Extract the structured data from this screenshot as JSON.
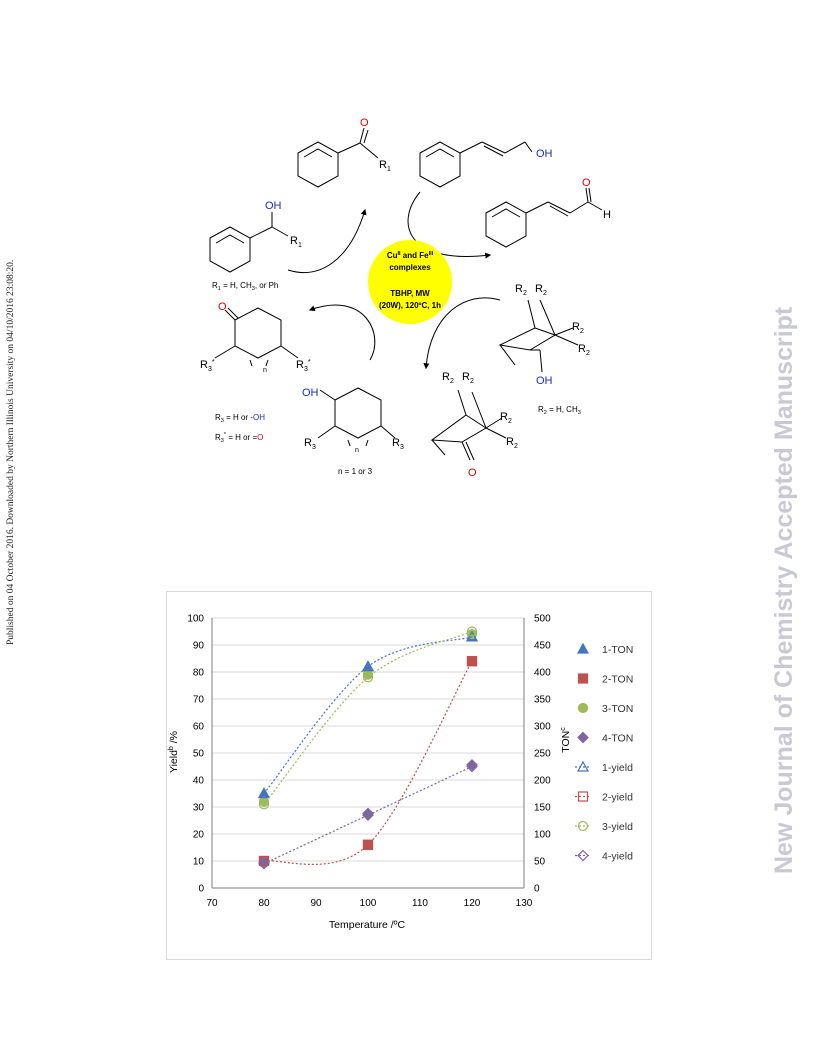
{
  "side_left": "Published on 04 October 2016. Downloaded by Northern Illinois University on 04/10/2016 23:08:20.",
  "side_right": "New Journal of Chemistry Accepted Manuscript",
  "scheme": {
    "catalyst_line1": "Cu",
    "catalyst_sup1": "II",
    "catalyst_and": " and Fe",
    "catalyst_sup2": "III",
    "catalyst_line2": "complexes",
    "catalyst_line3": "TBHP, MW",
    "catalyst_line4": "(20W), 120ºC, 1h",
    "oh": "OH",
    "o": "O",
    "h": "H",
    "r1": "R",
    "r1_sub": "1",
    "r2": "R",
    "r2_sub": "2",
    "r3": "R",
    "r3_sub": "3",
    "r3s_sub": "3",
    "r3s_sup": "*",
    "n": "n",
    "r1_note_prefix": "R",
    "r1_note_sub": "1",
    "r1_note_rest": " = H, CH",
    "r1_note_sub2": "3",
    "r1_note_end": ", or Ph",
    "r2_note_prefix": "R",
    "r2_note_sub": "2",
    "r2_note_rest": " = H, CH",
    "r2_note_sub2": "3",
    "r3_note_prefix": "R",
    "r3_note_sub": "3",
    "r3_note_rest": " = H or -",
    "r3_note_oh": "OH",
    "r3s_note_prefix": "R",
    "r3s_note_sub": "3",
    "r3s_note_sup": "*",
    "r3s_note_rest": " = H or =",
    "r3s_note_o": "O",
    "n_note": "n = 1 or 3"
  },
  "colors": {
    "catalyst_fill": "#ffff00",
    "heteroatom_o": "#e00000",
    "heteroatom_oh": "#1a2dbb",
    "s1": "#4472c4",
    "s2": "#c0504d",
    "s3": "#9bbb59",
    "s4": "#8064a2",
    "watermark": "#c9c9d6"
  },
  "chart_data": {
    "type": "scatter",
    "xlabel": "Temperature /ºC",
    "ylabel": "Yield",
    "ylabel_sup": "b",
    "ylabel_unit": " /%",
    "y2label": "TON",
    "y2label_sup": "c",
    "xlim": [
      70,
      130
    ],
    "ylim": [
      0,
      100
    ],
    "y2lim": [
      0,
      500
    ],
    "xticks": [
      "70",
      "80",
      "90",
      "100",
      "110",
      "120",
      "130"
    ],
    "yticks": [
      "0",
      "10",
      "20",
      "30",
      "40",
      "50",
      "60",
      "70",
      "80",
      "90",
      "100"
    ],
    "y2ticks": [
      "0",
      "50",
      "100",
      "150",
      "200",
      "250",
      "300",
      "350",
      "400",
      "450",
      "500"
    ],
    "x": [
      80,
      100,
      120
    ],
    "grid": true,
    "legend_position": "right",
    "series": [
      {
        "name": "1-TON",
        "axis": "right",
        "marker": "triangle",
        "values": [
          175,
          410,
          465
        ]
      },
      {
        "name": "2-TON",
        "axis": "right",
        "marker": "square",
        "values": [
          50,
          80,
          420
        ]
      },
      {
        "name": "3-TON",
        "axis": "right",
        "marker": "circle",
        "values": [
          160,
          395,
          470
        ]
      },
      {
        "name": "4-TON",
        "axis": "right",
        "marker": "diamond",
        "values": [
          48,
          138,
          228
        ]
      },
      {
        "name": "1-yield",
        "axis": "left",
        "marker": "triangle-open",
        "values": [
          35,
          82,
          93
        ]
      },
      {
        "name": "2-yield",
        "axis": "left",
        "marker": "square-open",
        "values": [
          10,
          16,
          84
        ]
      },
      {
        "name": "3-yield",
        "axis": "left",
        "marker": "circle-open",
        "values": [
          31,
          78,
          95
        ]
      },
      {
        "name": "4-yield",
        "axis": "left",
        "marker": "diamond-open",
        "values": [
          9,
          27,
          45
        ]
      }
    ]
  }
}
